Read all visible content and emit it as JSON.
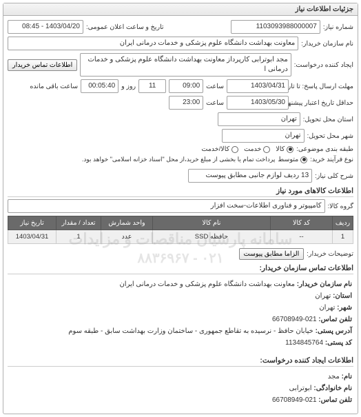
{
  "panel_title": "جزئیات اطلاعات نیاز",
  "labels": {
    "number": "شماره نیاز:",
    "announce_datetime": "تاریخ و ساعت اعلان عمومی:",
    "buyer_name": "نام سازمان خریدار:",
    "creator": "ایجاد کننده درخواست:",
    "contact_btn": "اطلاعات تماس خریدار",
    "answer_deadline": "مهلت ارسال پاسخ: تا تاریخ:",
    "validity": "حداقل تاریخ اعتبار پیشنهاد: تا تاریخ:",
    "hour": "ساعت",
    "remaining": "ساعت باقی مانده",
    "province": "استان محل تحویل:",
    "city": "شهر محل تحویل:",
    "category": "طبقه بندی موضوعی:",
    "process_type": "نوع فرآیند خرید:",
    "process_note": "پرداخت تمام یا بخشی از مبلغ خرید،از محل \"اسناد خزانه اسلامی\" خواهد بود.",
    "desc": "شرح کلی نیاز:",
    "items_section": "اطلاعات کالاهای مورد نیاز",
    "group": "گروه کالا:",
    "notes": "توضیحات خریدار:",
    "attach_btn": "الزاما مطابق پیوست",
    "contact_section": "اطلاعات تماس سازمان خریدار:",
    "creator_section": "اطلاعات ایجاد کننده درخواست:",
    "org_name_l": "نام سازمان خریدار:",
    "province_l": "استان:",
    "city_l": "شهر:",
    "contact_phone_l": "تلفن تماس:",
    "address_l": "آدرس پستی:",
    "postal_l": "کد پستی:",
    "name_l": "نام:",
    "family_l": "نام خانوادگی:",
    "phone_l": "تلفن تماس:"
  },
  "values": {
    "number": "1103093988000007",
    "announce_datetime": "1403/04/20 - 08:45",
    "buyer_name": "معاونت بهداشت دانشگاه علوم پزشکی و خدمات درمانی ایران",
    "creator": "مجد ابوترابی کارپرداز معاونت بهداشت دانشگاه علوم پزشکی و خدمات درمانی ا",
    "answer_date": "1403/04/31",
    "answer_time": "09:00",
    "answer_day": "11",
    "answer_remaining": "00:05:40",
    "validity_date": "1403/05/30",
    "validity_time": "23:00",
    "province": "تهران",
    "city": "تهران",
    "desc": "13 ردیف لوازم جانبی مطابق پیوست",
    "group": "کامپیوتر و فناوری اطلاعات-سخت افزار",
    "org_name": "معاونت بهداشت دانشگاه علوم پزشکی و خدمات درمانی ایران",
    "province_v": "تهران",
    "city_v": "تهران",
    "contact_phone": "021-66708949",
    "address": "خیابان حافظ - نرسیده به تقاطع جمهوری - ساختمان وزارت بهداشت سابق - طبقه سوم",
    "postal": "1134845764",
    "name": "مجد",
    "family": "ابوترابی",
    "phone": "021-66708949"
  },
  "radios": {
    "category_options": [
      "کالا",
      "خدمت",
      "کالا/خدمت"
    ],
    "category_selected": 0,
    "process_options": [
      "متوسط"
    ],
    "process_selected": 0
  },
  "table": {
    "columns": [
      "ردیف",
      "کد کالا",
      "نام کالا",
      "واحد شمارش",
      "تعداد / مقدار",
      "تاریخ نیاز"
    ],
    "col_widths": [
      "30px",
      "90px",
      "auto",
      "75px",
      "65px",
      "70px"
    ],
    "rows": [
      [
        "1",
        "--",
        "حافظه SSD",
        "عدد",
        "1",
        "1403/04/31"
      ]
    ],
    "header_bg": "#6a6a6a",
    "header_fg": "#ffffff",
    "row_bg": "#f0f0f0"
  },
  "watermark": {
    "line1": "سامانه پارسیان مناقصات و مزایدات",
    "line2": "۰۲۱ - ۸۸۳۶۹۶۷"
  },
  "colors": {
    "panel_border": "#b0b0b0",
    "field_border": "#a0a0a0",
    "text": "#333333",
    "bg": "#ffffff"
  }
}
